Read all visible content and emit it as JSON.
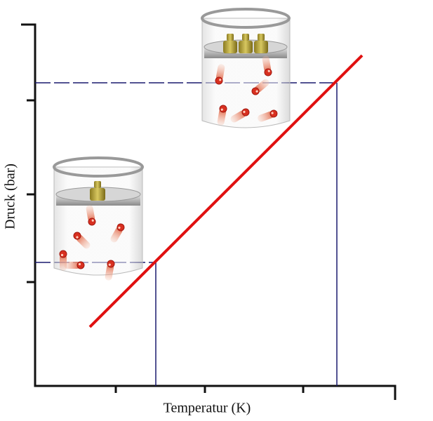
{
  "diagram": {
    "y_axis_label": "Druck (bar)",
    "x_axis_label": "Temperatur (K)"
  }
}
